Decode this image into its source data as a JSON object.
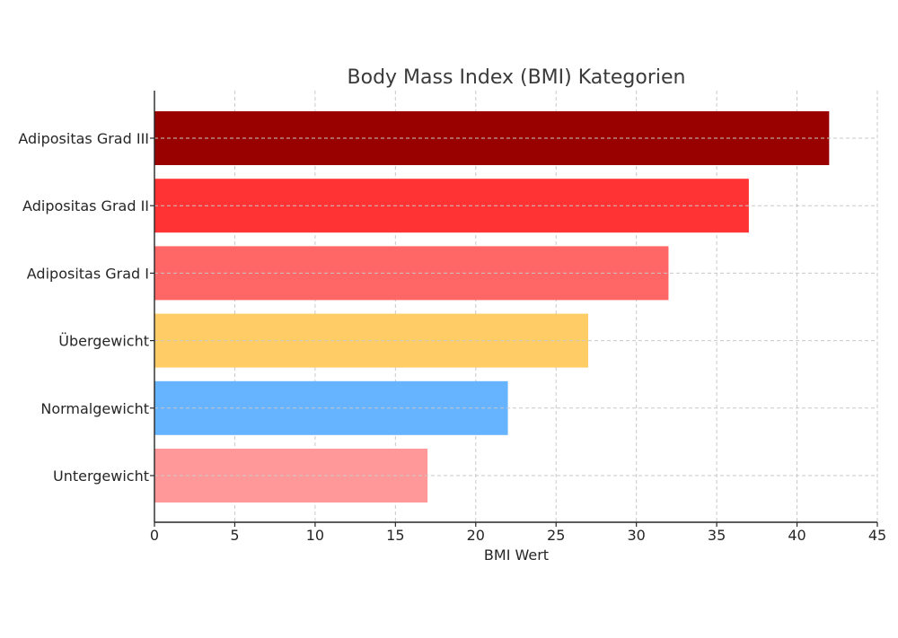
{
  "chart_data": {
    "type": "bar",
    "orientation": "horizontal",
    "title": "Body Mass Index (BMI) Kategorien",
    "xlabel": "BMI Wert",
    "ylabel": "",
    "categories": [
      "Untergewicht",
      "Normalgewicht",
      "Übergewicht",
      "Adipositas Grad I",
      "Adipositas Grad II",
      "Adipositas Grad III"
    ],
    "values": [
      17,
      22,
      27,
      32,
      37,
      42
    ],
    "colors": [
      "#ff9999",
      "#66b3ff",
      "#ffcc66",
      "#ff6666",
      "#ff3333",
      "#990000"
    ],
    "xlim": [
      0,
      45
    ],
    "xticks": [
      0,
      5,
      10,
      15,
      20,
      25,
      30,
      35,
      40,
      45
    ],
    "grid": true
  }
}
